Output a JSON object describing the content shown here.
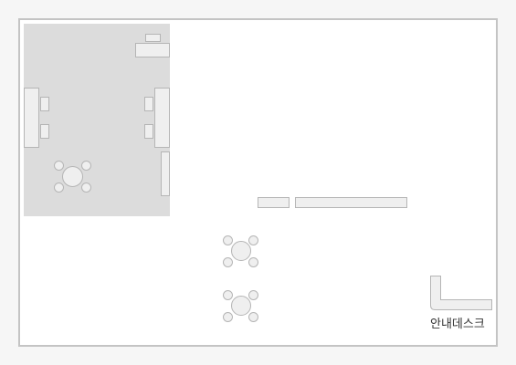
{
  "floor_plan": {
    "info_desk_label": "안내데스크"
  },
  "colors": {
    "background": "#f6f6f6",
    "floor": "#ffffff",
    "wall_border": "#c4c4c4",
    "room_fill": "#dcdcdc",
    "furniture_fill": "#efefef",
    "furniture_stroke": "#b5b5b5",
    "label_text": "#333333"
  }
}
